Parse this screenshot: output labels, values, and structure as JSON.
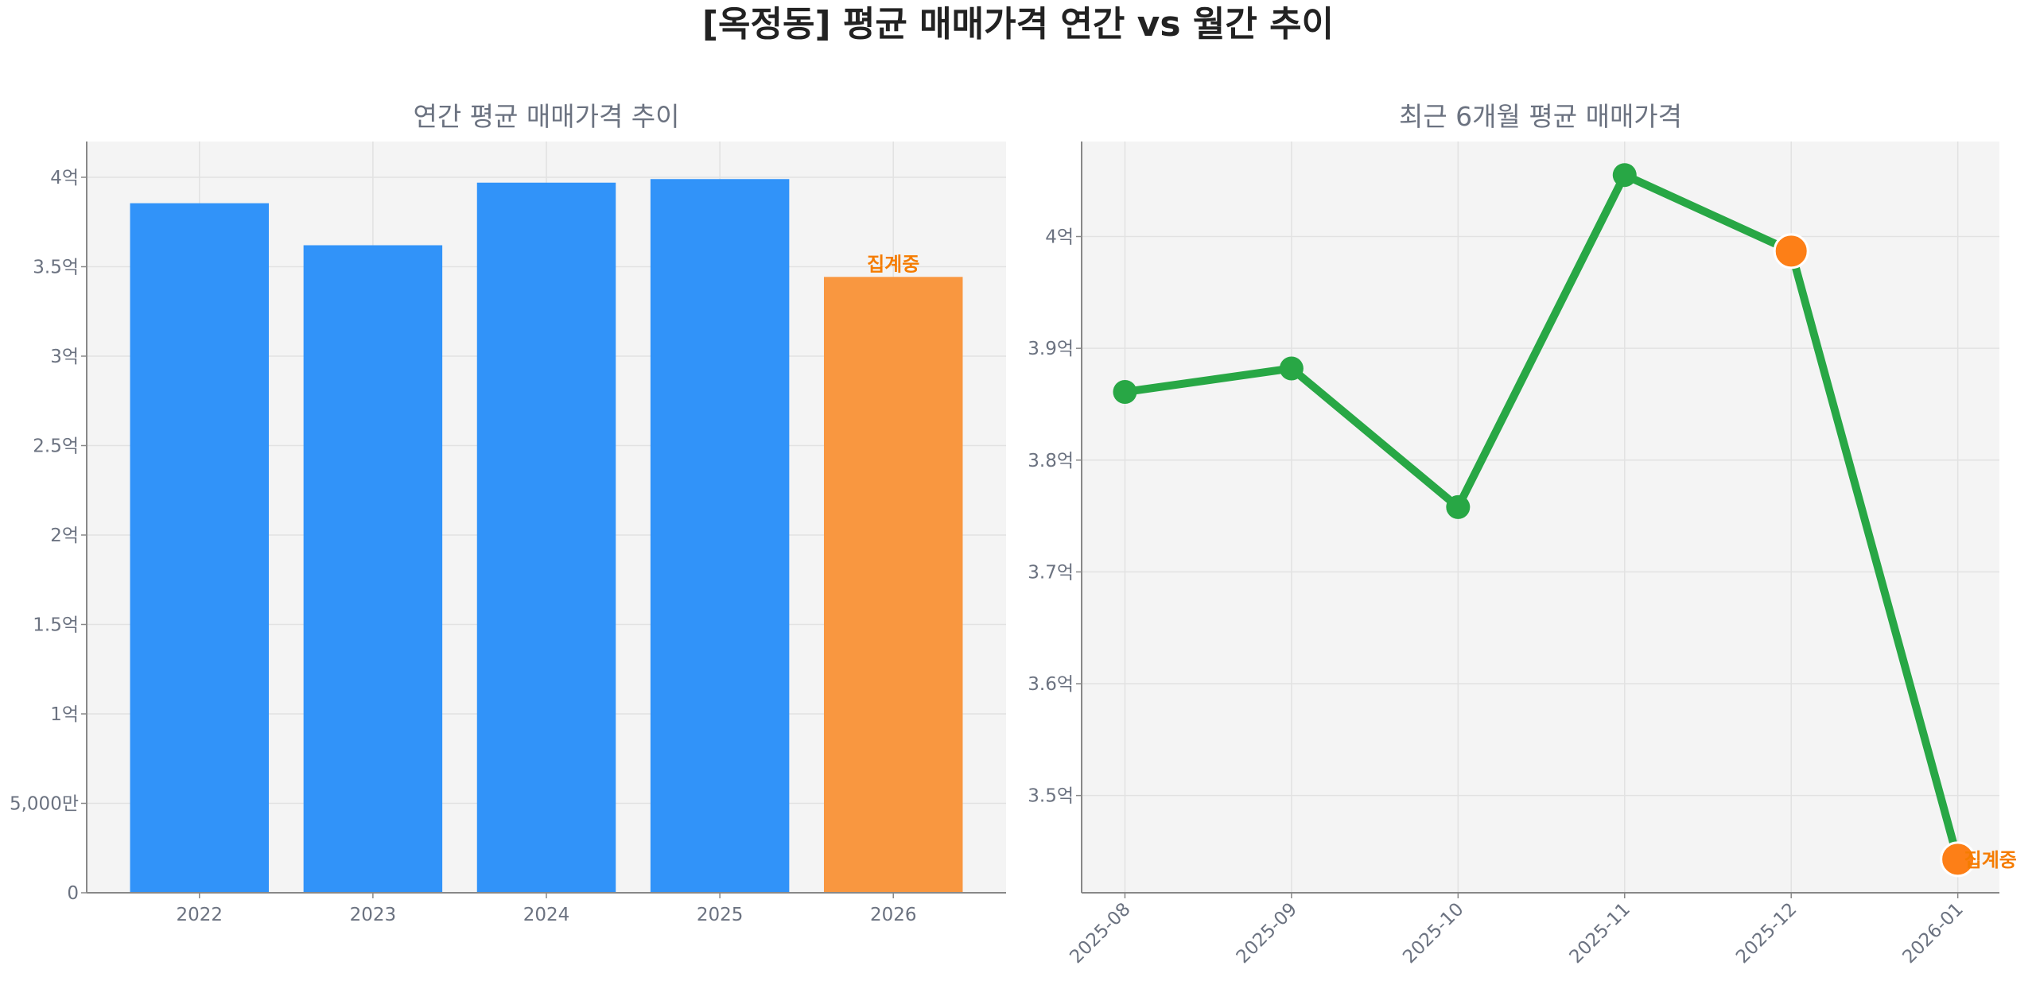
{
  "title": "[옥정동] 평균 매매가격 연간 vs 월간 추이",
  "chart_data": [
    {
      "type": "bar",
      "title": "연간 평균 매매가격 추이",
      "categories": [
        "2022",
        "2023",
        "2024",
        "2025",
        "2026"
      ],
      "values": [
        38550,
        36200,
        39700,
        39900,
        34430
      ],
      "unit": "만원",
      "ylim": [
        0,
        42000
      ],
      "yticks": [
        0,
        5000,
        10000,
        15000,
        20000,
        25000,
        30000,
        35000,
        40000
      ],
      "ytick_labels": [
        "0",
        "5,000만",
        "1억",
        "1.5억",
        "2억",
        "2.5억",
        "3억",
        "3.5억",
        "4억"
      ],
      "bar_colors": [
        "#3193f9",
        "#3193f9",
        "#3193f9",
        "#3193f9",
        "#f99740"
      ],
      "annotations": [
        {
          "category": "2026",
          "text": "집계중",
          "color": "#f57c00"
        }
      ],
      "grid": true
    },
    {
      "type": "line",
      "title": "최근 6개월 평균 매매가격",
      "categories": [
        "2025-08",
        "2025-09",
        "2025-10",
        "2025-11",
        "2025-12",
        "2026-01"
      ],
      "values": [
        38610,
        38820,
        37580,
        40550,
        39870,
        34430
      ],
      "unit": "만원",
      "ylim": [
        34130,
        40850
      ],
      "yticks": [
        35000,
        36000,
        37000,
        38000,
        39000,
        40000
      ],
      "ytick_labels": [
        "3.5억",
        "3.6억",
        "3.7억",
        "3.8억",
        "3.9억",
        "4억"
      ],
      "line_color": "#28a745",
      "highlight_color": "#fd7f17",
      "highlighted": [
        "2025-12",
        "2026-01"
      ],
      "annotations": [
        {
          "category": "2026-01",
          "text": "집계중",
          "color": "#f57c00"
        }
      ],
      "grid": true
    }
  ]
}
